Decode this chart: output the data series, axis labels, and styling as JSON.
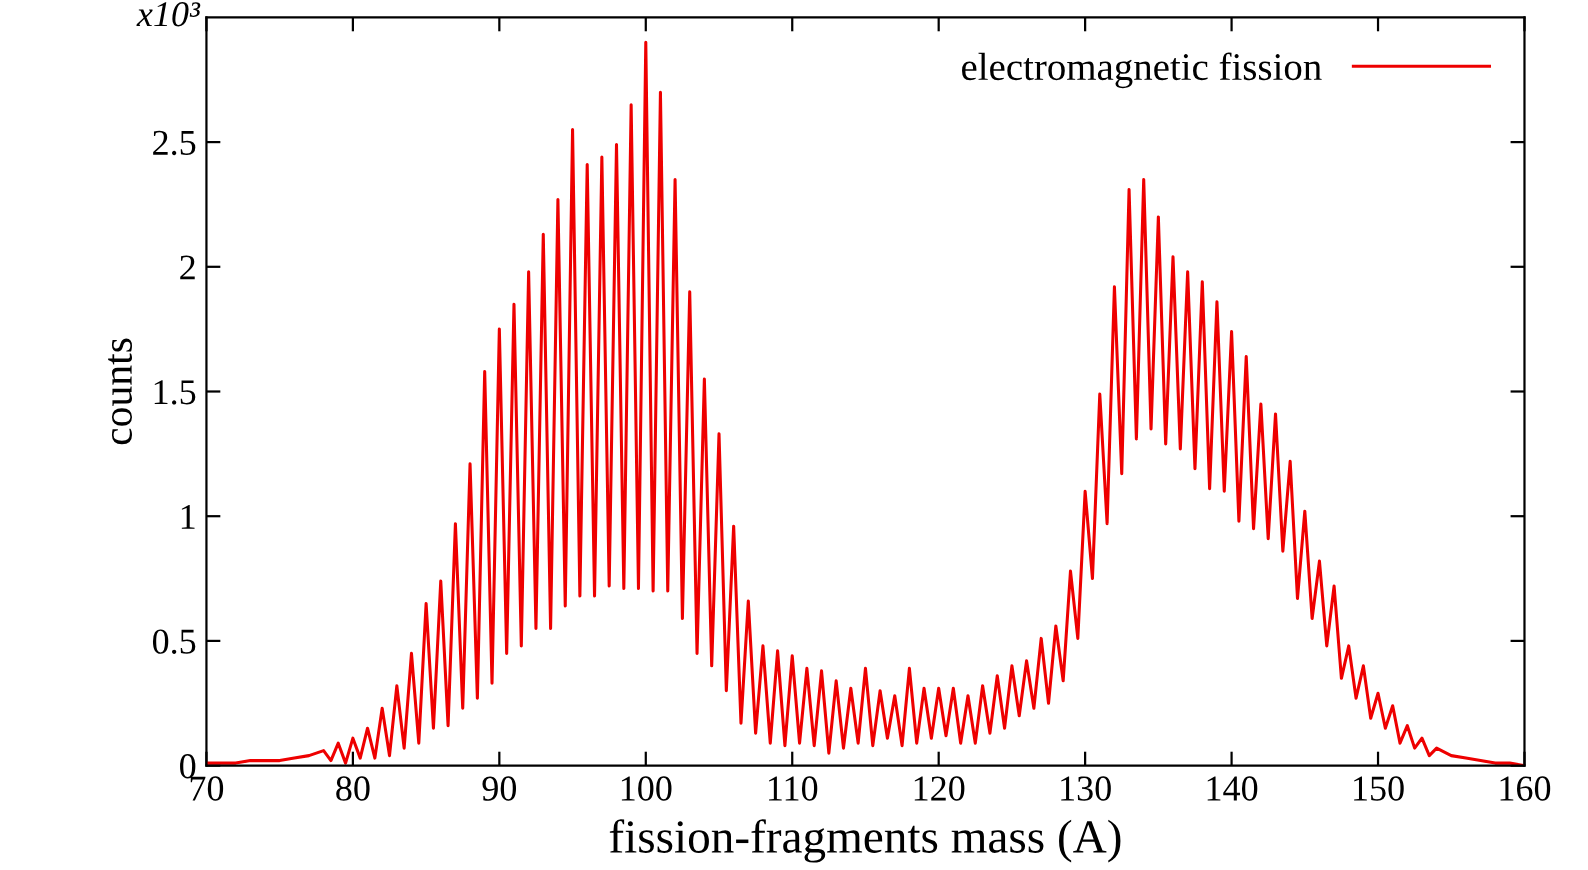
{
  "chart_data": {
    "type": "line",
    "xlabel": "fission-fragments mass (A)",
    "ylabel": "counts",
    "annotations": [
      "x10³"
    ],
    "xlim": [
      70,
      160
    ],
    "ylim": [
      0,
      3
    ],
    "xticks": [
      70,
      80,
      90,
      100,
      110,
      120,
      130,
      140,
      150,
      160
    ],
    "yticks": [
      0,
      0.5,
      1,
      1.5,
      2,
      2.5
    ],
    "grid": false,
    "legend": "top right",
    "marker": "none",
    "line_style": "solid",
    "series": [
      {
        "name": "electromagnetic fission",
        "color": "#ee0000",
        "x": [
          70,
          71,
          72,
          73,
          74,
          75,
          76,
          77,
          78,
          78.5,
          79,
          79.5,
          80,
          80.5,
          81,
          81.5,
          82,
          82.5,
          83,
          83.5,
          84,
          84.5,
          85,
          85.5,
          86,
          86.5,
          87,
          87.5,
          88,
          88.5,
          89,
          89.5,
          90,
          90.5,
          91,
          91.5,
          92,
          92.5,
          93,
          93.5,
          94,
          94.5,
          95,
          95.5,
          96,
          96.5,
          97,
          97.5,
          98,
          98.5,
          99,
          99.5,
          100,
          100.5,
          101,
          101.5,
          102,
          102.5,
          103,
          103.5,
          104,
          104.5,
          105,
          105.5,
          106,
          106.5,
          107,
          107.5,
          108,
          108.5,
          109,
          109.5,
          110,
          110.5,
          111,
          111.5,
          112,
          112.5,
          113,
          113.5,
          114,
          114.5,
          115,
          115.5,
          116,
          116.5,
          117,
          117.5,
          118,
          118.5,
          119,
          119.5,
          120,
          120.5,
          121,
          121.5,
          122,
          122.5,
          123,
          123.5,
          124,
          124.5,
          125,
          125.5,
          126,
          126.5,
          127,
          127.5,
          128,
          128.5,
          129,
          129.5,
          130,
          130.5,
          131,
          131.5,
          132,
          132.5,
          133,
          133.5,
          134,
          134.5,
          135,
          135.5,
          136,
          136.5,
          137,
          137.5,
          138,
          138.5,
          139,
          139.5,
          140,
          140.5,
          141,
          141.5,
          142,
          142.5,
          143,
          143.5,
          144,
          144.5,
          145,
          145.5,
          146,
          146.5,
          147,
          147.5,
          148,
          148.5,
          149,
          149.5,
          150,
          150.5,
          151,
          151.5,
          152,
          152.5,
          153,
          153.5,
          154,
          155,
          156,
          157,
          158,
          159,
          160
        ],
        "values": [
          0.01,
          0.01,
          0.01,
          0.02,
          0.02,
          0.02,
          0.03,
          0.04,
          0.06,
          0.02,
          0.09,
          0.01,
          0.11,
          0.03,
          0.15,
          0.03,
          0.23,
          0.04,
          0.32,
          0.07,
          0.45,
          0.09,
          0.65,
          0.15,
          0.74,
          0.16,
          0.97,
          0.23,
          1.21,
          0.27,
          1.58,
          0.33,
          1.75,
          0.45,
          1.85,
          0.48,
          1.98,
          0.55,
          2.13,
          0.55,
          2.27,
          0.64,
          2.55,
          0.68,
          2.41,
          0.68,
          2.44,
          0.72,
          2.49,
          0.71,
          2.65,
          0.71,
          2.9,
          0.7,
          2.7,
          0.7,
          2.35,
          0.59,
          1.9,
          0.45,
          1.55,
          0.4,
          1.33,
          0.3,
          0.96,
          0.17,
          0.66,
          0.13,
          0.48,
          0.09,
          0.46,
          0.08,
          0.44,
          0.09,
          0.39,
          0.08,
          0.38,
          0.05,
          0.34,
          0.07,
          0.31,
          0.09,
          0.39,
          0.08,
          0.3,
          0.11,
          0.28,
          0.08,
          0.39,
          0.09,
          0.31,
          0.11,
          0.31,
          0.12,
          0.31,
          0.09,
          0.28,
          0.09,
          0.32,
          0.13,
          0.36,
          0.15,
          0.4,
          0.2,
          0.42,
          0.23,
          0.51,
          0.25,
          0.56,
          0.34,
          0.78,
          0.51,
          1.1,
          0.75,
          1.49,
          0.97,
          1.92,
          1.17,
          2.31,
          1.31,
          2.35,
          1.35,
          2.2,
          1.29,
          2.04,
          1.27,
          1.98,
          1.19,
          1.94,
          1.11,
          1.86,
          1.1,
          1.74,
          0.98,
          1.64,
          0.95,
          1.45,
          0.91,
          1.41,
          0.86,
          1.22,
          0.67,
          1.02,
          0.59,
          0.82,
          0.48,
          0.72,
          0.35,
          0.48,
          0.27,
          0.4,
          0.19,
          0.29,
          0.15,
          0.24,
          0.09,
          0.16,
          0.07,
          0.11,
          0.04,
          0.07,
          0.04,
          0.03,
          0.02,
          0.01,
          0.01,
          0
        ]
      }
    ]
  }
}
